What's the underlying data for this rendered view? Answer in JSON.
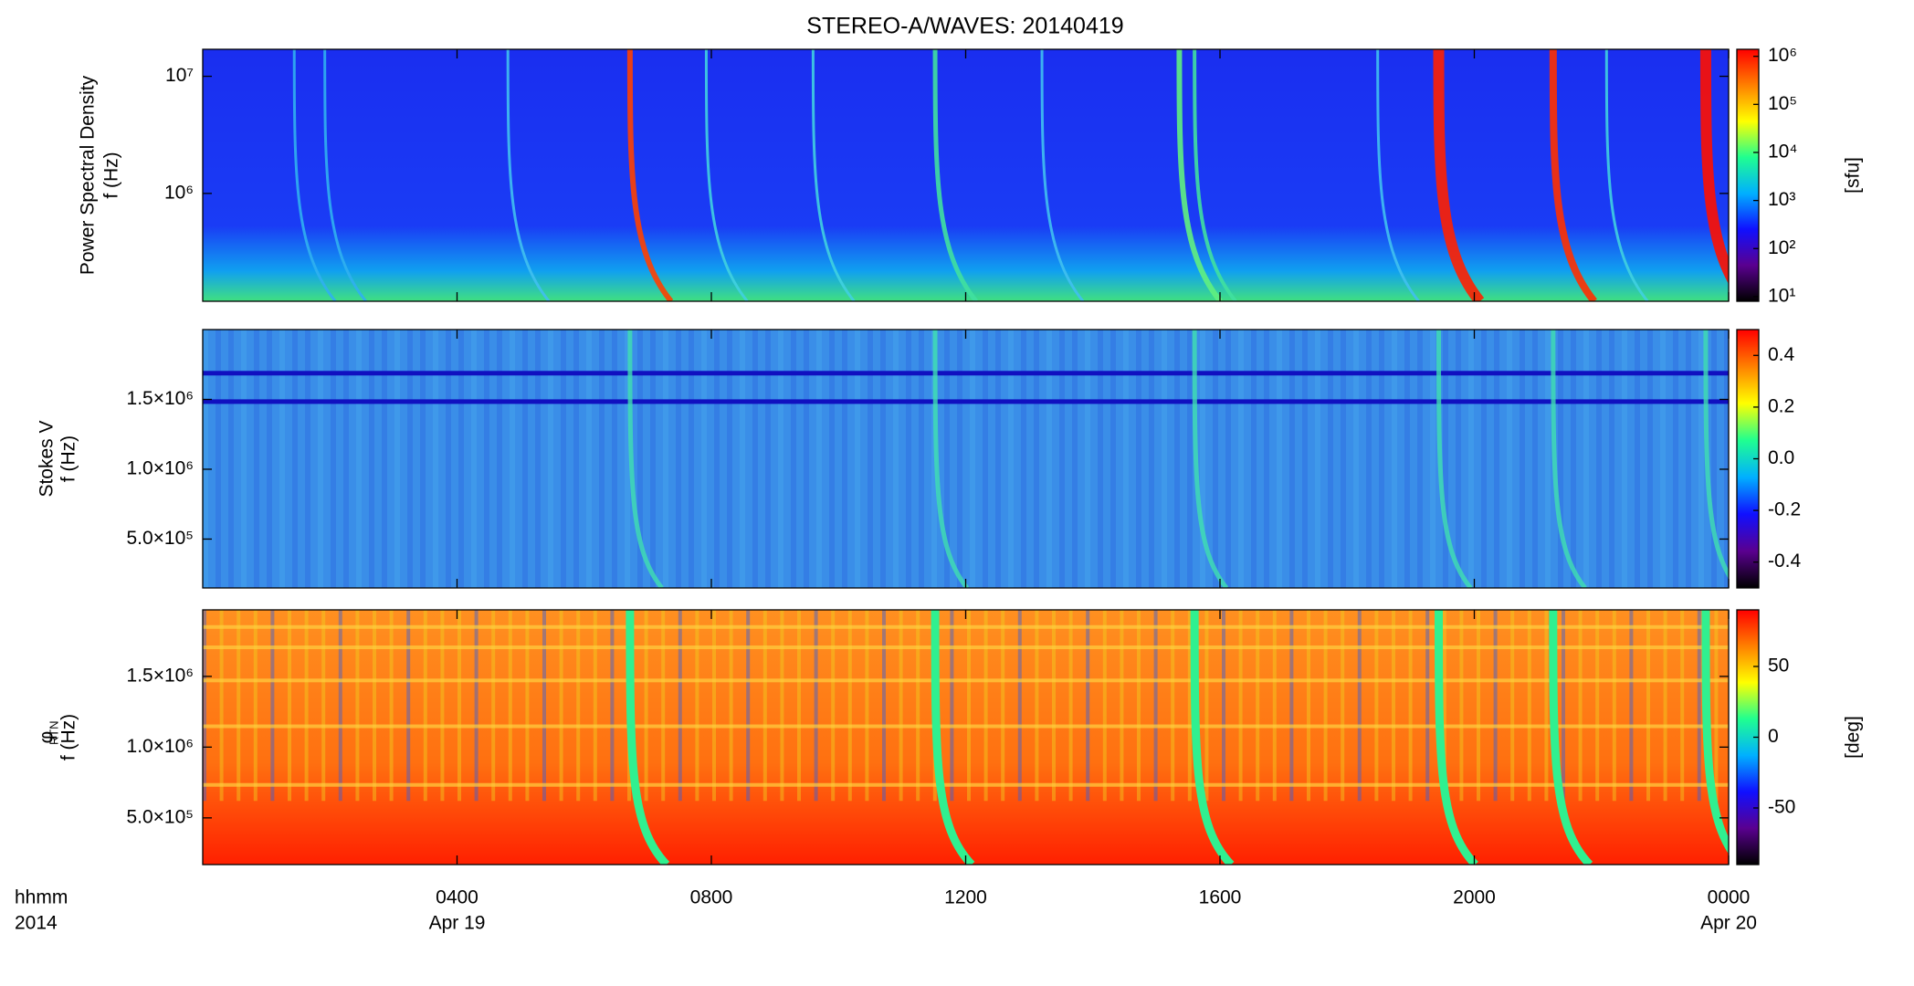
{
  "title": "STEREO-A/WAVES: 20140419",
  "chart_data": [
    {
      "type": "spectrogram",
      "ylabel": [
        "Power Spectral Density",
        "f (Hz)"
      ],
      "ylog": true,
      "ylim": [
        120000,
        17000000
      ],
      "yticks": [
        {
          "value": 1000000,
          "label": "10⁶"
        },
        {
          "value": 10000000,
          "label": "10⁷"
        }
      ],
      "xlim": [
        0,
        24
      ],
      "colorbar": {
        "label": "[sfu]",
        "log": true,
        "lim": [
          8,
          1400000
        ],
        "ticks": [
          {
            "value": 10,
            "label": "10¹"
          },
          {
            "value": 100,
            "label": "10²"
          },
          {
            "value": 1000,
            "label": "10³"
          },
          {
            "value": 10000,
            "label": "10⁴"
          },
          {
            "value": 100000,
            "label": "10⁵"
          },
          {
            "value": 1000000,
            "label": "10⁶"
          }
        ],
        "colormap": [
          "#000000",
          "#5a0090",
          "#1010ff",
          "#00b0ff",
          "#20ff90",
          "#ffff00",
          "#ff8000",
          "#ff0000"
        ]
      }
    },
    {
      "type": "spectrogram",
      "ylabel": [
        "Stokes V",
        "f (Hz)"
      ],
      "ylog": false,
      "ylim": [
        150000,
        2000000
      ],
      "yticks": [
        {
          "value": 500000,
          "label": "5.0×10⁵"
        },
        {
          "value": 1000000,
          "label": "1.0×10⁶"
        },
        {
          "value": 1500000,
          "label": "1.5×10⁶"
        }
      ],
      "xlim": [
        0,
        24
      ],
      "colorbar": {
        "log": false,
        "lim": [
          -0.5,
          0.5
        ],
        "ticks": [
          0.4,
          0.2,
          {
            "value": 0,
            "label": "0.0"
          },
          -0.2,
          -0.4
        ],
        "colormap": [
          "#000000",
          "#5a0090",
          "#1010ff",
          "#00b0ff",
          "#20ff90",
          "#ffff00",
          "#ff8000",
          "#ff0000"
        ]
      }
    },
    {
      "type": "spectrogram",
      "ylabel": [
        "φ",
        "f (Hz)"
      ],
      "ylabel_subscript": "RTN",
      "ylog": false,
      "ylim": [
        170000,
        1970000
      ],
      "yticks": [
        {
          "value": 500000,
          "label": "5.0×10⁵"
        },
        {
          "value": 1000000,
          "label": "1.0×10⁶"
        },
        {
          "value": 1500000,
          "label": "1.5×10⁶"
        }
      ],
      "xlim": [
        0,
        24
      ],
      "xticks": [
        {
          "value": 4,
          "label": "0400"
        },
        {
          "value": 8,
          "label": "0800"
        },
        {
          "value": 12,
          "label": "1200"
        },
        {
          "value": 16,
          "label": "1600"
        },
        {
          "value": 20,
          "label": "2000"
        },
        {
          "value": 24,
          "label": "0000"
        }
      ],
      "xlabel": [
        "hhmm",
        "2014"
      ],
      "xdate_labels": [
        {
          "value": 4,
          "label": "Apr 19"
        },
        {
          "value": 24,
          "label": "Apr 20"
        }
      ],
      "colorbar": {
        "label": "[deg]",
        "log": false,
        "lim": [
          -90,
          90
        ],
        "ticks": [
          50,
          0,
          -50
        ],
        "colormap": [
          "#000000",
          "#5a0090",
          "#1010ff",
          "#00b0ff",
          "#20ff90",
          "#ffff00",
          "#ff8000",
          "#ff0000"
        ]
      }
    }
  ]
}
